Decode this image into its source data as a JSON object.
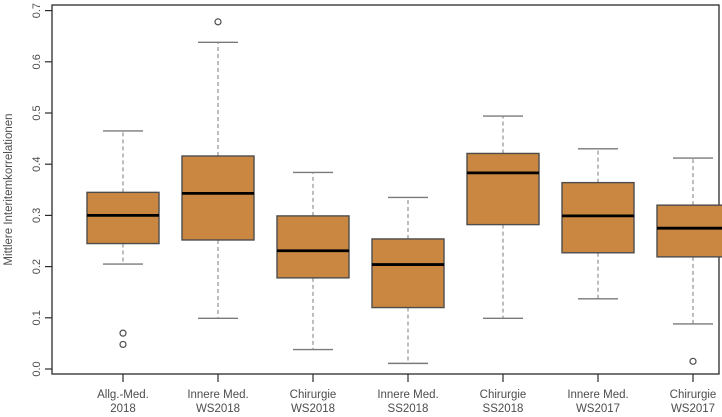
{
  "figure": {
    "background": "#ffffff"
  },
  "chart_data": {
    "type": "boxplot",
    "title": "",
    "xlabel": "",
    "ylabel": "Mittlere Interitemkorrelationen",
    "ylim": [
      0.0,
      0.7
    ],
    "ytick_labels": [
      "0.0",
      "0.1",
      "0.2",
      "0.3",
      "0.4",
      "0.5",
      "0.6",
      "0.7"
    ],
    "grid": false,
    "legend": "none",
    "categories": [
      {
        "line1": "Allg.-Med.",
        "line2": "2018"
      },
      {
        "line1": "Innere Med.",
        "line2": "WS2018"
      },
      {
        "line1": "Chirurgie",
        "line2": "WS2018"
      },
      {
        "line1": "Innere Med.",
        "line2": "SS2018"
      },
      {
        "line1": "Chirurgie",
        "line2": "SS2018"
      },
      {
        "line1": "Innere Med.",
        "line2": "WS2017"
      },
      {
        "line1": "Chirurgie",
        "line2": "WS2017"
      }
    ],
    "boxes": [
      {
        "label": "Allg.-Med. 2018",
        "whisker_low": 0.205,
        "q1": 0.245,
        "median": 0.3,
        "q3": 0.345,
        "whisker_high": 0.465,
        "outliers": [
          0.07,
          0.048
        ]
      },
      {
        "label": "Innere Med. WS2018",
        "whisker_low": 0.099,
        "q1": 0.252,
        "median": 0.343,
        "q3": 0.416,
        "whisker_high": 0.638,
        "outliers": [
          0.678
        ]
      },
      {
        "label": "Chirurgie WS2018",
        "whisker_low": 0.038,
        "q1": 0.178,
        "median": 0.231,
        "q3": 0.299,
        "whisker_high": 0.384,
        "outliers": []
      },
      {
        "label": "Innere Med. SS2018",
        "whisker_low": 0.011,
        "q1": 0.12,
        "median": 0.204,
        "q3": 0.254,
        "whisker_high": 0.335,
        "outliers": []
      },
      {
        "label": "Chirurgie SS2018",
        "whisker_low": 0.099,
        "q1": 0.282,
        "median": 0.383,
        "q3": 0.421,
        "whisker_high": 0.494,
        "outliers": []
      },
      {
        "label": "Innere Med. WS2017",
        "whisker_low": 0.137,
        "q1": 0.227,
        "median": 0.299,
        "q3": 0.364,
        "whisker_high": 0.43,
        "outliers": []
      },
      {
        "label": "Chirurgie WS2017",
        "whisker_low": 0.088,
        "q1": 0.219,
        "median": 0.275,
        "q3": 0.32,
        "whisker_high": 0.412,
        "outliers": [
          0.015
        ]
      }
    ],
    "colors": {
      "box_fill": "#CA8741",
      "box_border": "#4d4d4d",
      "median": "#000000",
      "whisker_line": "#9a9a9a",
      "whisker_cap": "#7a7a7a",
      "outlier": "#4d4d4d",
      "frame": "#2b2b2b",
      "tick": "#2b2b2b",
      "text": "#4d4d4d"
    }
  }
}
